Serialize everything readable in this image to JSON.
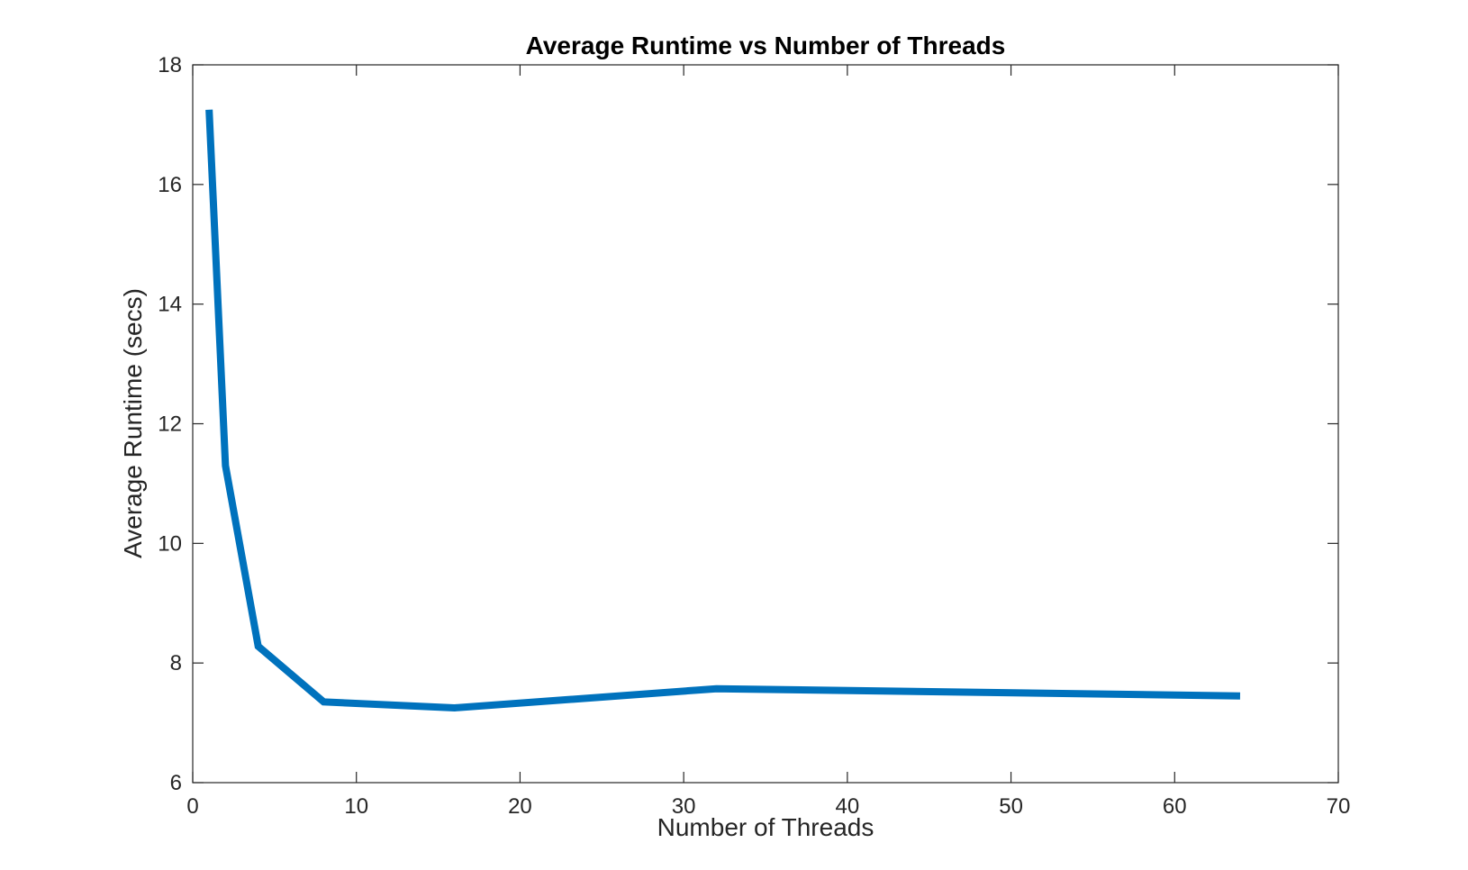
{
  "chart_data": {
    "type": "line",
    "title": "Average Runtime vs Number of Threads",
    "xlabel": "Number of Threads",
    "ylabel": "Average Runtime (secs)",
    "xlim": [
      0,
      70
    ],
    "ylim": [
      6,
      18
    ],
    "xticks": [
      0,
      10,
      20,
      30,
      40,
      50,
      60,
      70
    ],
    "yticks": [
      6,
      8,
      10,
      12,
      14,
      16,
      18
    ],
    "grid": false,
    "box": true,
    "series": [
      {
        "x": [
          1,
          2,
          4,
          8,
          16,
          32,
          64
        ],
        "y": [
          17.25,
          11.3,
          8.28,
          7.35,
          7.25,
          7.57,
          7.45
        ],
        "color": "#0072BD"
      }
    ]
  }
}
